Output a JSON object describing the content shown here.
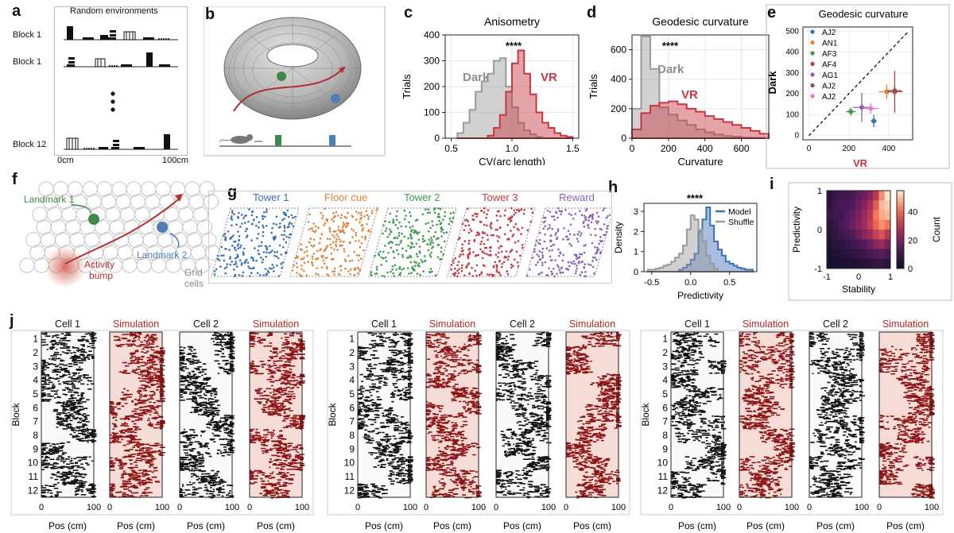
{
  "panel_letters": [
    "a",
    "b",
    "c",
    "d",
    "e",
    "f",
    "g",
    "h",
    "i",
    "j"
  ],
  "panel_a": {
    "title": "Random environments",
    "block_labels": [
      "Block 1",
      "Block 1",
      "Block 12"
    ],
    "x_start": "0cm",
    "x_end": "100cm"
  },
  "panel_f": {
    "landmark1": "Landmark 1",
    "landmark2": "Landmark 2",
    "bump": [
      "Activity",
      "bump"
    ],
    "grid": [
      "Grid",
      "cells"
    ]
  },
  "panel_g": {
    "labels": [
      "Tower 1",
      "Floor cue",
      "Tower 2",
      "Tower 3",
      "Reward"
    ],
    "colors": [
      "#3b6fb6",
      "#e0843a",
      "#3f9a4d",
      "#c6373f",
      "#8a62b5"
    ]
  },
  "panel_j": {
    "headers": [
      "Cell 1",
      "Simulation",
      "Cell 2",
      "Simulation"
    ],
    "ylabel": "Block",
    "block_numbers": [
      "1",
      "2",
      "3",
      "4",
      "5",
      "6",
      "7",
      "8",
      "9",
      "10",
      "11",
      "12"
    ],
    "xlabel": "Pos (cm)",
    "ticks": [
      "0",
      "100"
    ]
  },
  "chart_data": [
    {
      "id": "c",
      "type": "area",
      "title": "Anisometry",
      "xlabel": "CV(arc length)",
      "ylabel": "Trials",
      "xlim": [
        0.45,
        1.55
      ],
      "ylim": [
        0,
        400
      ],
      "xticks": [
        "0.5",
        "1.0",
        "1.5"
      ],
      "yticks": [
        "0",
        "100",
        "200",
        "300",
        "400"
      ],
      "significance": "****",
      "bin_edges": [
        0.55,
        0.6,
        0.65,
        0.7,
        0.75,
        0.8,
        0.85,
        0.9,
        0.95,
        1.0,
        1.05,
        1.1,
        1.15,
        1.2,
        1.25,
        1.3,
        1.35,
        1.4,
        1.45,
        1.5
      ],
      "series": [
        {
          "name": "Dark",
          "color": "#9a9a9a",
          "values": [
            20,
            60,
            110,
            180,
            220,
            250,
            300,
            310,
            200,
            120,
            60,
            30,
            15,
            5,
            0,
            0,
            0,
            0,
            0
          ]
        },
        {
          "name": "VR",
          "color": "#c6373f",
          "values": [
            0,
            0,
            0,
            0,
            0,
            10,
            40,
            90,
            180,
            290,
            340,
            250,
            170,
            100,
            60,
            40,
            20,
            10,
            5
          ]
        }
      ]
    },
    {
      "id": "d",
      "type": "area",
      "title": "Geodesic curvature",
      "xlabel": "Curvature",
      "ylabel": "Trials",
      "xlim": [
        0,
        750
      ],
      "ylim": [
        0,
        700
      ],
      "xticks": [
        "0",
        "200",
        "400",
        "600"
      ],
      "yticks": [
        "0",
        "200",
        "400",
        "600"
      ],
      "significance": "****",
      "bin_edges": [
        0,
        50,
        100,
        150,
        200,
        250,
        300,
        350,
        400,
        450,
        500,
        550,
        600,
        650,
        700,
        750
      ],
      "series": [
        {
          "name": "Dark",
          "color": "#9a9a9a",
          "values": [
            200,
            690,
            470,
            210,
            160,
            120,
            90,
            60,
            40,
            25,
            15,
            10,
            5,
            3,
            2
          ]
        },
        {
          "name": "VR",
          "color": "#c6373f",
          "values": [
            60,
            170,
            220,
            240,
            250,
            230,
            200,
            180,
            150,
            130,
            110,
            90,
            70,
            50,
            30
          ]
        }
      ]
    },
    {
      "id": "e",
      "type": "scatter",
      "title": "Geodesic curvature",
      "xlabel": "VR",
      "ylabel": "Dark",
      "xlim": [
        -30,
        520
      ],
      "ylim": [
        -20,
        520
      ],
      "xticks": [
        "0",
        "200",
        "400"
      ],
      "yticks": [
        "0",
        "100",
        "200",
        "300",
        "400",
        "500"
      ],
      "legend_position": "top-left",
      "series": [
        {
          "name": "AJ2",
          "color": "#3b6fb6",
          "x": 325,
          "y": 70,
          "xerr": 15,
          "yerr": 30
        },
        {
          "name": "AN1",
          "color": "#e0843a",
          "x": 390,
          "y": 210,
          "xerr": 40,
          "yerr": 35
        },
        {
          "name": "AF3",
          "color": "#3f9a4d",
          "x": 210,
          "y": 115,
          "xerr": 25,
          "yerr": 20
        },
        {
          "name": "AF4",
          "color": "#c6373f",
          "x": 430,
          "y": 210,
          "xerr": 40,
          "yerr": 100
        },
        {
          "name": "AG1",
          "color": "#8a62b5",
          "x": 265,
          "y": 135,
          "xerr": 45,
          "yerr": 70
        },
        {
          "name": "AJ2",
          "color": "#8c564b",
          "x": 430,
          "y": 215,
          "xerr": 35,
          "yerr": 25
        },
        {
          "name": "AJ2",
          "color": "#e27bc0",
          "x": 310,
          "y": 130,
          "xerr": 40,
          "yerr": 25
        }
      ]
    },
    {
      "id": "h",
      "type": "area",
      "xlabel": "Predictivity",
      "ylabel": "Density",
      "xlim": [
        -0.6,
        0.85
      ],
      "ylim": [
        0,
        3.4
      ],
      "xticks": [
        "-0.5",
        "0.0",
        "0.5"
      ],
      "yticks": [
        "0",
        "1",
        "2",
        "3"
      ],
      "significance": "****",
      "legend_position": "top-right",
      "bin_edges": [
        -0.55,
        -0.5,
        -0.45,
        -0.4,
        -0.35,
        -0.3,
        -0.25,
        -0.2,
        -0.15,
        -0.1,
        -0.05,
        0.0,
        0.05,
        0.1,
        0.15,
        0.2,
        0.25,
        0.3,
        0.35,
        0.4,
        0.45,
        0.5,
        0.55,
        0.6,
        0.65,
        0.7,
        0.75,
        0.8
      ],
      "series": [
        {
          "name": "Model",
          "color": "#3b6fb6",
          "values": [
            0,
            0,
            0,
            0,
            0,
            0,
            0,
            0,
            0.1,
            0.2,
            0.35,
            0.6,
            0.9,
            2.0,
            2.6,
            3.2,
            2.3,
            1.5,
            1.1,
            0.8,
            0.5,
            0.4,
            0.3,
            0.2,
            0.15,
            0.1,
            0.1
          ]
        },
        {
          "name": "Shuffle",
          "color": "#9a9a9a",
          "values": [
            0.1,
            0.1,
            0.15,
            0.2,
            0.3,
            0.35,
            0.5,
            0.7,
            0.9,
            1.3,
            2.1,
            2.8,
            2.6,
            2.1,
            1.5,
            0.8,
            0.4,
            0.15,
            0,
            0,
            0,
            0,
            0,
            0,
            0,
            0,
            0
          ]
        }
      ]
    },
    {
      "id": "i",
      "type": "heatmap",
      "xlabel": "Stability",
      "ylabel": "Predictivity",
      "xlim": [
        -1,
        1
      ],
      "ylim": [
        -1,
        1
      ],
      "xticks": [
        "-1",
        "0",
        "1"
      ],
      "yticks": [
        "-1",
        "0",
        "1"
      ],
      "colorbar_label": "Count",
      "colorbar_ticks": [
        "0",
        "20",
        "40"
      ],
      "colorbar_range": [
        0,
        55
      ],
      "grid_rows_top_to_bottom": [
        [
          5,
          8,
          10,
          10,
          12,
          15,
          18,
          22,
          30,
          45,
          55
        ],
        [
          6,
          10,
          12,
          12,
          14,
          18,
          22,
          28,
          38,
          50,
          52
        ],
        [
          8,
          10,
          10,
          14,
          16,
          20,
          25,
          30,
          42,
          48,
          50
        ],
        [
          6,
          8,
          12,
          14,
          18,
          22,
          26,
          32,
          40,
          45,
          42
        ],
        [
          5,
          7,
          10,
          12,
          14,
          18,
          22,
          26,
          32,
          36,
          30
        ],
        [
          3,
          5,
          6,
          8,
          10,
          12,
          14,
          18,
          22,
          25,
          20
        ],
        [
          2,
          3,
          4,
          5,
          6,
          8,
          10,
          12,
          14,
          15,
          12
        ],
        [
          1,
          2,
          2,
          3,
          3,
          4,
          5,
          6,
          7,
          8,
          6
        ]
      ]
    }
  ]
}
